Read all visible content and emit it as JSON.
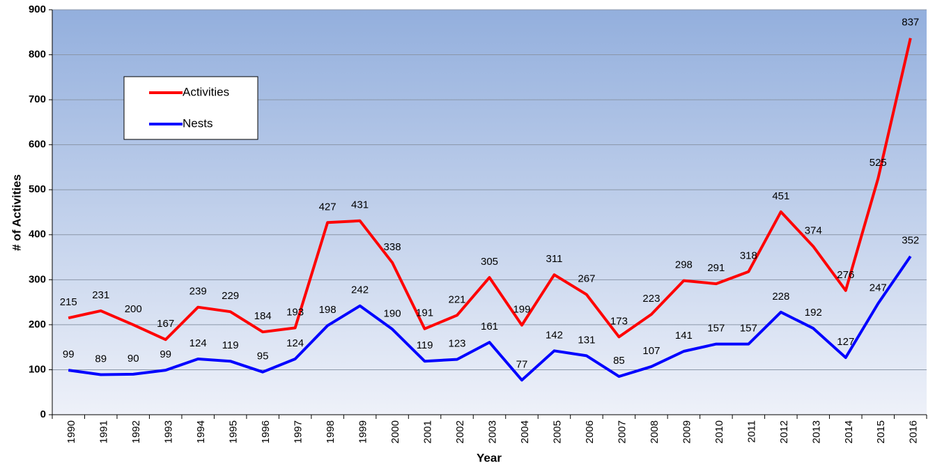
{
  "chart_data": {
    "type": "line",
    "x_label": "Year",
    "y_label": "# of Activities",
    "categories": [
      "1990",
      "1991",
      "1992",
      "1993",
      "1994",
      "1995",
      "1996",
      "1997",
      "1998",
      "1999",
      "2000",
      "2001",
      "2002",
      "2003",
      "2004",
      "2005",
      "2006",
      "2007",
      "2008",
      "2009",
      "2010",
      "2011",
      "2012",
      "2013",
      "2014",
      "2015",
      "2016"
    ],
    "series": [
      {
        "name": "Activities",
        "color": "#ff0000",
        "values": [
          215,
          231,
          200,
          167,
          239,
          229,
          184,
          193,
          427,
          431,
          338,
          191,
          221,
          305,
          199,
          311,
          267,
          173,
          223,
          298,
          291,
          318,
          451,
          374,
          276,
          525,
          837
        ]
      },
      {
        "name": "Nests",
        "color": "#0000ff",
        "values": [
          99,
          89,
          90,
          99,
          124,
          119,
          95,
          124,
          198,
          242,
          190,
          119,
          123,
          161,
          77,
          142,
          131,
          85,
          107,
          141,
          157,
          157,
          228,
          192,
          127,
          247,
          352
        ]
      }
    ],
    "ylim": [
      0,
      900
    ],
    "yticks": [
      0,
      100,
      200,
      300,
      400,
      500,
      600,
      700,
      800,
      900
    ],
    "grid": true,
    "legend": "upper left"
  }
}
